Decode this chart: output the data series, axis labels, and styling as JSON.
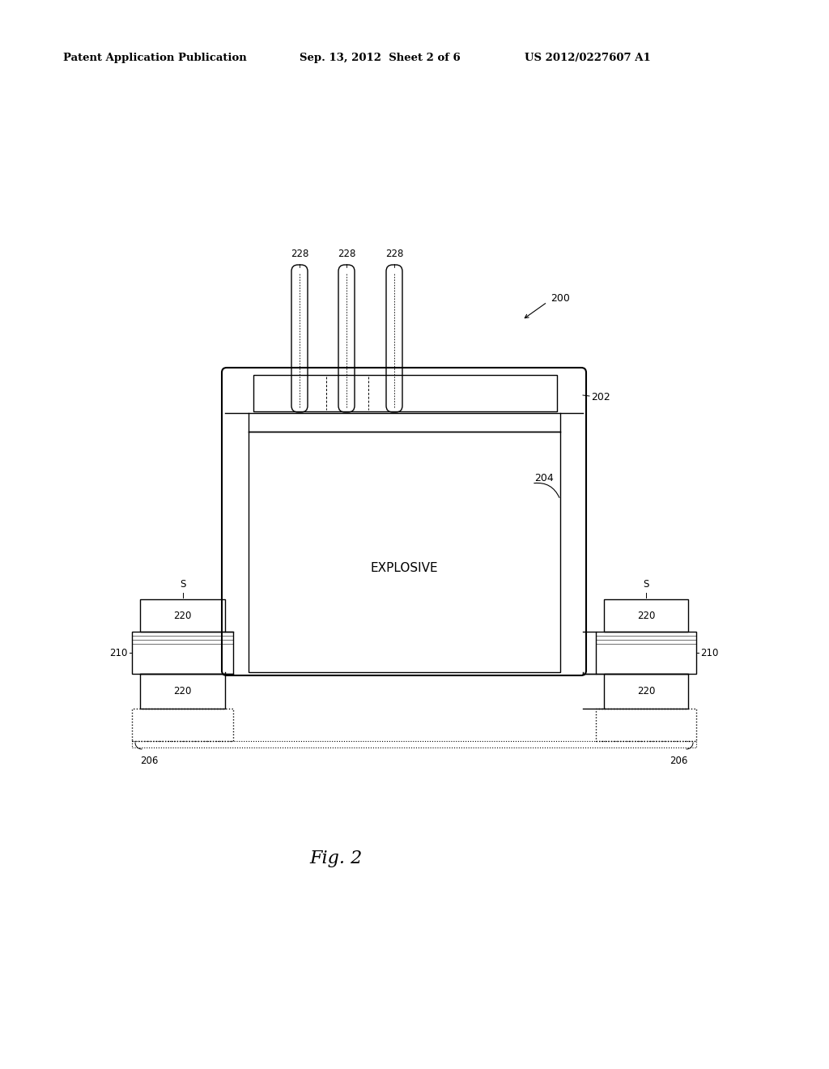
{
  "bg_color": "#ffffff",
  "line_color": "#000000",
  "text_color": "#000000",
  "header_left": "Patent Application Publication",
  "header_mid": "Sep. 13, 2012  Sheet 2 of 6",
  "header_right": "US 2012/0227607 A1",
  "fig_label": "Fig. 2",
  "label_200": "200",
  "label_202": "202",
  "label_204": "204",
  "label_206": "206",
  "label_210": "210",
  "label_220": "220",
  "label_228": "228",
  "label_S": "S",
  "explosive_text": "EXPLOSIVE"
}
